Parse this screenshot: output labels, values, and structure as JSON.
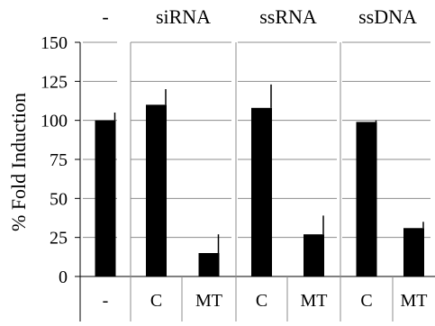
{
  "chart_data": {
    "type": "bar",
    "ylabel": "% Fold Induction",
    "ylim": [
      0,
      150
    ],
    "yticks": [
      0,
      25,
      50,
      75,
      100,
      125,
      150
    ],
    "grid": true,
    "groups": [
      {
        "label": "-",
        "categories": [
          "-"
        ]
      },
      {
        "label": "siRNA",
        "categories": [
          "C",
          "MT"
        ]
      },
      {
        "label": "ssRNA",
        "categories": [
          "C",
          "MT"
        ]
      },
      {
        "label": "ssDNA",
        "categories": [
          "C",
          "MT"
        ]
      }
    ],
    "values": [
      100,
      110,
      15,
      108,
      27,
      99,
      31
    ],
    "error": [
      5,
      10,
      12,
      15,
      12,
      1,
      4
    ],
    "bar_color": "#000000",
    "grid_color": "#8c8c8c"
  }
}
